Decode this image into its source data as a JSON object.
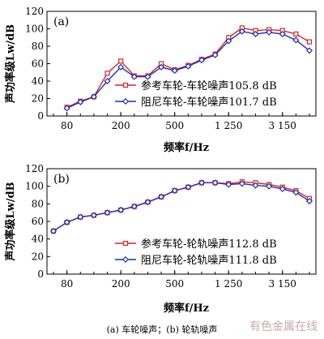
{
  "chart_data": [
    {
      "type": "line",
      "panel_label": "(a)",
      "xlabel": "频率f/Hz",
      "ylabel": "声功率级Lw/dB",
      "ylim": [
        0,
        120
      ],
      "yticks": [
        0,
        20,
        40,
        60,
        80,
        100,
        120
      ],
      "xtick_labels": [
        "80",
        "200",
        "500",
        "1 250",
        "3 150"
      ],
      "categories": [
        "63",
        "80",
        "100",
        "125",
        "160",
        "200",
        "250",
        "315",
        "400",
        "500",
        "630",
        "800",
        "1000",
        "1250",
        "1600",
        "2000",
        "2500",
        "3150",
        "4000",
        "5000"
      ],
      "legend_position": "bottom-right",
      "series": [
        {
          "name": "参考车轮-车轮噪声105.8 dB",
          "color": "#d62728",
          "marker": "square",
          "values": [
            null,
            10,
            17,
            22,
            49,
            63,
            46,
            46,
            60,
            53,
            58,
            65,
            71,
            90,
            101,
            98,
            99,
            98,
            94,
            85
          ]
        },
        {
          "name": "阻尼车轮-车轮噪声101.7 dB",
          "color": "#1f2fb4",
          "marker": "diamond",
          "values": [
            null,
            9,
            16,
            22,
            40,
            56,
            45,
            45,
            56,
            52,
            57,
            64,
            70,
            86,
            97,
            94,
            96,
            94,
            87,
            75
          ]
        }
      ]
    },
    {
      "type": "line",
      "panel_label": "(b)",
      "xlabel": "频率f/Hz",
      "ylabel": "声功率级Lw/dB",
      "ylim": [
        0,
        120
      ],
      "yticks": [
        0,
        20,
        40,
        60,
        80,
        100,
        120
      ],
      "xtick_labels": [
        "80",
        "200",
        "500",
        "1 250",
        "3 150"
      ],
      "categories": [
        "63",
        "80",
        "100",
        "125",
        "160",
        "200",
        "250",
        "315",
        "400",
        "500",
        "630",
        "800",
        "1000",
        "1250",
        "1600",
        "2000",
        "2500",
        "3150",
        "4000",
        "5000"
      ],
      "legend_position": "bottom-right",
      "series": [
        {
          "name": "参考车轮-轮轨噪声112.8 dB",
          "color": "#d62728",
          "marker": "square",
          "values": [
            49,
            59,
            65,
            67,
            70,
            73,
            77,
            82,
            88,
            95,
            99,
            104,
            104,
            103,
            105,
            104,
            102,
            99,
            95,
            86
          ]
        },
        {
          "name": "阻尼车轮-轮轨噪声111.8 dB",
          "color": "#1f2fb4",
          "marker": "diamond",
          "values": [
            49,
            59,
            65,
            67,
            70,
            73,
            77,
            82,
            88,
            95,
            99,
            104,
            104,
            102,
            103,
            101,
            100,
            97,
            93,
            83
          ]
        }
      ]
    }
  ],
  "caption": "(a) 车轮噪声；(b) 轮轨噪声",
  "watermark": "有色金属在线"
}
